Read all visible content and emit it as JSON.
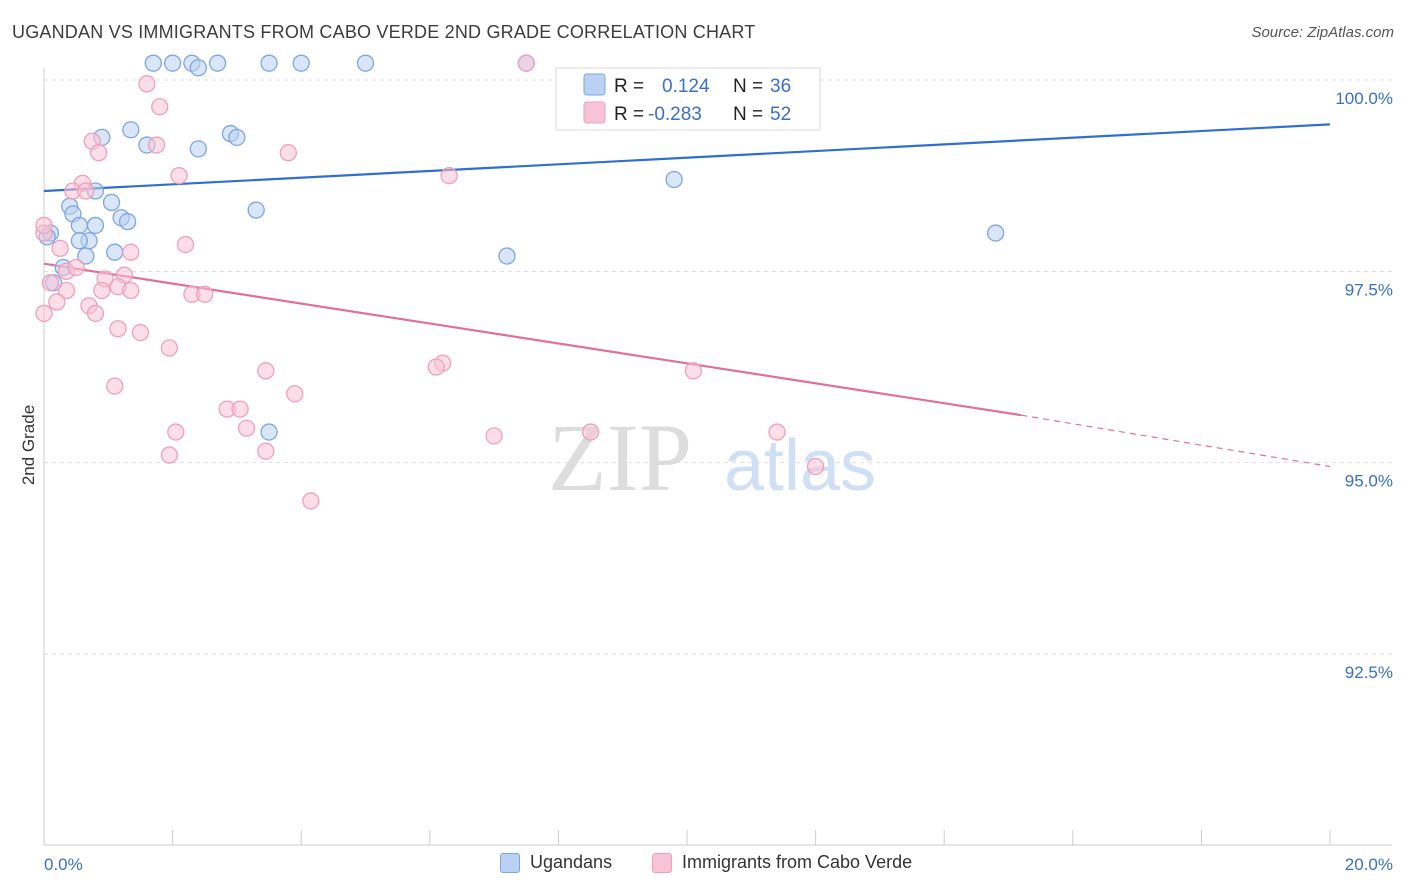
{
  "header": {
    "title": "UGANDAN VS IMMIGRANTS FROM CABO VERDE 2ND GRADE CORRELATION CHART",
    "source": "Source: ZipAtlas.com"
  },
  "watermark": {
    "zip": "ZIP",
    "atlas": "atlas"
  },
  "colors": {
    "blue": "#2f6fcf",
    "blue_fill": "#b9d1f2",
    "blue_stroke": "#7ea6e0",
    "pink": "#e07098",
    "pink_fill": "#f8c3d4",
    "pink_stroke": "#eea0ba",
    "tick": "#3a6fc4",
    "grid": "#dddddd"
  },
  "legend": {
    "rows": [
      {
        "r_label": "R =",
        "r_value": "0.124",
        "n_label": "N =",
        "n_value": "36"
      },
      {
        "r_label": "R =",
        "r_value": "-0.283",
        "n_label": "N =",
        "n_value": "52"
      }
    ]
  },
  "bottom_legend": {
    "series1": "Ugandans",
    "series2": "Immigrants from Cabo Verde"
  },
  "chart_data": {
    "type": "scatter",
    "title": "UGANDAN VS IMMIGRANTS FROM CABO VERDE 2ND GRADE CORRELATION CHART",
    "xlabel": "",
    "ylabel": "2nd Grade",
    "xlim": [
      0.0,
      20.0
    ],
    "ylim": [
      90.0,
      100.2
    ],
    "x_tick_labels": [
      "0.0%",
      "20.0%"
    ],
    "y_ticks": [
      100.0,
      97.5,
      95.0,
      92.5
    ],
    "y_tick_labels": [
      "100.0%",
      "97.5%",
      "95.0%",
      "92.5%"
    ],
    "grid": true,
    "series": [
      {
        "name": "Ugandans",
        "color": "blue",
        "trend": {
          "x": [
            0.0,
            20.0
          ],
          "y": [
            98.55,
            99.42
          ]
        },
        "points": [
          {
            "x": 1.7,
            "y": 100.22
          },
          {
            "x": 2.0,
            "y": 100.22
          },
          {
            "x": 2.3,
            "y": 100.22
          },
          {
            "x": 2.4,
            "y": 100.16
          },
          {
            "x": 2.7,
            "y": 100.22
          },
          {
            "x": 3.5,
            "y": 100.22
          },
          {
            "x": 4.0,
            "y": 100.22
          },
          {
            "x": 5.0,
            "y": 100.22
          },
          {
            "x": 7.5,
            "y": 100.22
          },
          {
            "x": 0.9,
            "y": 99.25
          },
          {
            "x": 1.35,
            "y": 99.35
          },
          {
            "x": 1.6,
            "y": 99.15
          },
          {
            "x": 2.4,
            "y": 99.1
          },
          {
            "x": 2.9,
            "y": 99.3
          },
          {
            "x": 3.0,
            "y": 99.25
          },
          {
            "x": 0.8,
            "y": 98.55
          },
          {
            "x": 1.05,
            "y": 98.4
          },
          {
            "x": 0.4,
            "y": 98.35
          },
          {
            "x": 0.45,
            "y": 98.25
          },
          {
            "x": 0.55,
            "y": 98.1
          },
          {
            "x": 0.8,
            "y": 98.1
          },
          {
            "x": 1.2,
            "y": 98.2
          },
          {
            "x": 1.3,
            "y": 98.15
          },
          {
            "x": 3.3,
            "y": 98.3
          },
          {
            "x": 0.1,
            "y": 98.0
          },
          {
            "x": 0.05,
            "y": 97.95
          },
          {
            "x": 0.7,
            "y": 97.9
          },
          {
            "x": 0.55,
            "y": 97.9
          },
          {
            "x": 1.1,
            "y": 97.75
          },
          {
            "x": 0.65,
            "y": 97.7
          },
          {
            "x": 0.3,
            "y": 97.55
          },
          {
            "x": 7.2,
            "y": 97.7
          },
          {
            "x": 0.15,
            "y": 97.35
          },
          {
            "x": 9.8,
            "y": 98.7
          },
          {
            "x": 14.8,
            "y": 98.0
          },
          {
            "x": 3.5,
            "y": 95.4
          }
        ]
      },
      {
        "name": "Immigrants from Cabo Verde",
        "color": "pink",
        "trend": {
          "x": [
            0.0,
            15.2
          ],
          "y": [
            97.6,
            95.62
          ]
        },
        "trend_dashed": {
          "x": [
            15.2,
            20.0
          ],
          "y": [
            95.62,
            94.95
          ]
        },
        "points": [
          {
            "x": 7.5,
            "y": 100.22
          },
          {
            "x": 1.6,
            "y": 99.95
          },
          {
            "x": 1.8,
            "y": 99.65
          },
          {
            "x": 0.75,
            "y": 99.2
          },
          {
            "x": 0.85,
            "y": 99.05
          },
          {
            "x": 1.75,
            "y": 99.15
          },
          {
            "x": 3.8,
            "y": 99.05
          },
          {
            "x": 6.3,
            "y": 98.75
          },
          {
            "x": 2.1,
            "y": 98.75
          },
          {
            "x": 0.6,
            "y": 98.65
          },
          {
            "x": 0.45,
            "y": 98.55
          },
          {
            "x": 0.65,
            "y": 98.55
          },
          {
            "x": 0.0,
            "y": 98.0
          },
          {
            "x": 0.25,
            "y": 97.8
          },
          {
            "x": 1.35,
            "y": 97.75
          },
          {
            "x": 2.2,
            "y": 97.85
          },
          {
            "x": 0.35,
            "y": 97.5
          },
          {
            "x": 0.5,
            "y": 97.55
          },
          {
            "x": 0.95,
            "y": 97.4
          },
          {
            "x": 1.25,
            "y": 97.45
          },
          {
            "x": 1.15,
            "y": 97.3
          },
          {
            "x": 1.35,
            "y": 97.25
          },
          {
            "x": 0.1,
            "y": 97.35
          },
          {
            "x": 0.35,
            "y": 97.25
          },
          {
            "x": 0.2,
            "y": 97.1
          },
          {
            "x": 0.7,
            "y": 97.05
          },
          {
            "x": 0.9,
            "y": 97.25
          },
          {
            "x": 2.3,
            "y": 97.2
          },
          {
            "x": 2.5,
            "y": 97.2
          },
          {
            "x": 0.0,
            "y": 96.95
          },
          {
            "x": 0.8,
            "y": 96.95
          },
          {
            "x": 1.15,
            "y": 96.75
          },
          {
            "x": 1.5,
            "y": 96.7
          },
          {
            "x": 1.95,
            "y": 96.5
          },
          {
            "x": 6.2,
            "y": 96.3
          },
          {
            "x": 6.1,
            "y": 96.25
          },
          {
            "x": 3.45,
            "y": 96.2
          },
          {
            "x": 10.1,
            "y": 96.2
          },
          {
            "x": 1.1,
            "y": 96.0
          },
          {
            "x": 3.9,
            "y": 95.9
          },
          {
            "x": 2.85,
            "y": 95.7
          },
          {
            "x": 3.05,
            "y": 95.7
          },
          {
            "x": 3.15,
            "y": 95.45
          },
          {
            "x": 2.05,
            "y": 95.4
          },
          {
            "x": 7.0,
            "y": 95.35
          },
          {
            "x": 8.5,
            "y": 95.4
          },
          {
            "x": 11.4,
            "y": 95.4
          },
          {
            "x": 3.45,
            "y": 95.15
          },
          {
            "x": 1.95,
            "y": 95.1
          },
          {
            "x": 12.0,
            "y": 94.95
          },
          {
            "x": 4.15,
            "y": 94.5
          },
          {
            "x": 0.0,
            "y": 98.1
          }
        ]
      }
    ]
  }
}
